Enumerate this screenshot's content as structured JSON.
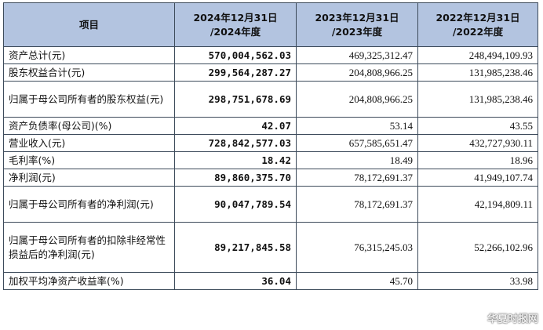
{
  "table": {
    "headers": [
      [
        "项目"
      ],
      [
        "2024年12月31日",
        "/2024年度"
      ],
      [
        "2023年12月31日",
        "/2023年度"
      ],
      [
        "2022年12月31日",
        "/2022年度"
      ]
    ],
    "rows": [
      {
        "item": "资产总计(元)",
        "y2024": "570,004,562.03",
        "y2023": "469,325,312.47",
        "y2022": "248,494,109.93"
      },
      {
        "item": "股东权益合计(元)",
        "y2024": "299,564,287.27",
        "y2023": "204,808,966.25",
        "y2022": "131,985,238.46"
      },
      {
        "item": "归属于母公司所有者的股东权益(元)",
        "y2024": "298,751,678.69",
        "y2023": "204,808,966.25",
        "y2022": "131,985,238.46"
      },
      {
        "item": "资产负债率(母公司)(%)",
        "y2024": "42.07",
        "y2023": "53.14",
        "y2022": "43.55"
      },
      {
        "item": "营业收入(元)",
        "y2024": "728,842,577.03",
        "y2023": "657,585,651.47",
        "y2022": "432,727,930.11"
      },
      {
        "item": "毛利率(%)",
        "y2024": "18.42",
        "y2023": "18.49",
        "y2022": "18.96"
      },
      {
        "item": "净利润(元)",
        "y2024": "89,860,375.70",
        "y2023": "78,172,691.37",
        "y2022": "41,949,107.74"
      },
      {
        "item": "归属于母公司所有者的净利润(元)",
        "y2024": "90,047,789.54",
        "y2023": "78,172,691.37",
        "y2022": "42,194,809.11"
      },
      {
        "item": "归属于母公司所有者的扣除非经常性损益后的净利润(元)",
        "y2024": "89,217,845.58",
        "y2023": "76,315,245.03",
        "y2022": "52,266,102.96"
      },
      {
        "item": "加权平均净资产收益率(%)",
        "y2024": "36.04",
        "y2023": "45.70",
        "y2022": "33.98"
      }
    ]
  },
  "watermark": {
    "text": "华夏时报网",
    "icon": "weibo-logo-icon"
  }
}
